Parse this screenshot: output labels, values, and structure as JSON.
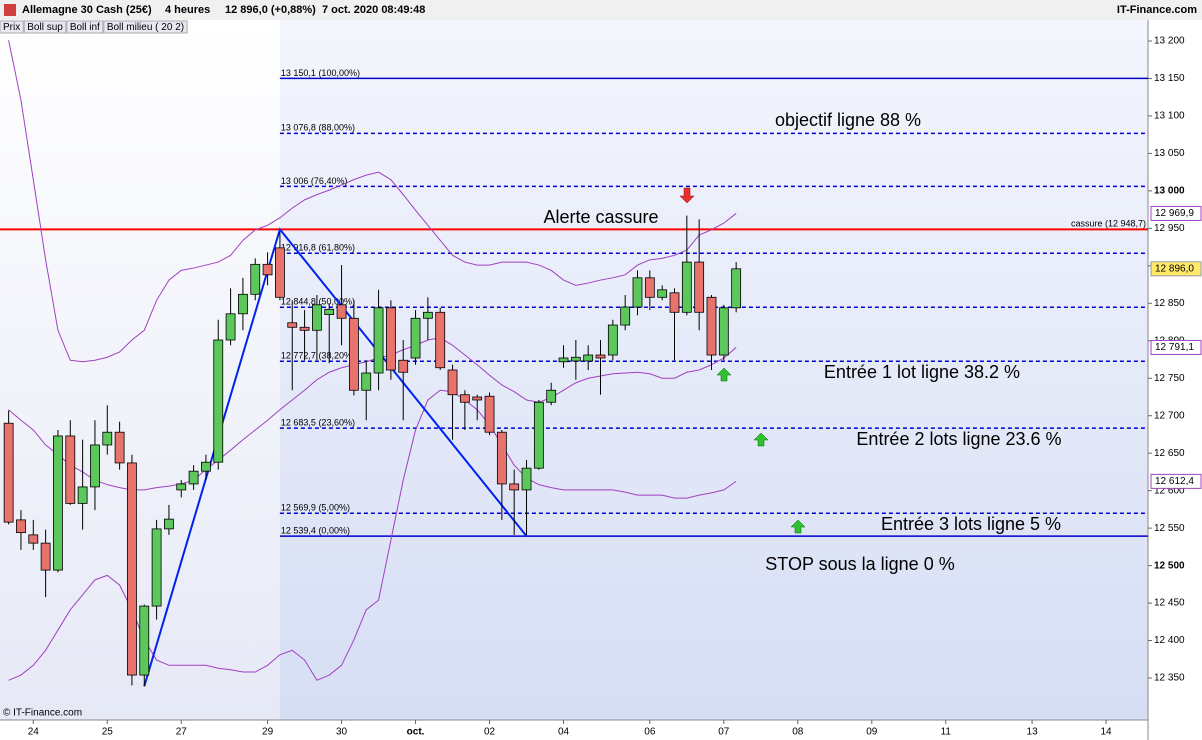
{
  "header": {
    "instrument": "Allemagne 30 Cash (25€)",
    "period": "4 heures",
    "quote": "12 896,0 (+0,88%)",
    "datetime": "7 oct. 2020 08:49:48",
    "source": "IT-Finance.com"
  },
  "footer": "© IT-Finance.com",
  "chart_data": {
    "type": "candlestick",
    "price_name": "Prix",
    "xlim": [
      -0.7,
      92.4
    ],
    "xticks": [
      {
        "value": 2,
        "label": "24"
      },
      {
        "value": 8,
        "label": "25"
      },
      {
        "value": 14,
        "label": "27"
      },
      {
        "value": 21,
        "label": "29"
      },
      {
        "value": 27,
        "label": "30"
      },
      {
        "value": 33,
        "label": "oct."
      },
      {
        "value": 39,
        "label": "02"
      },
      {
        "value": 45,
        "label": "04"
      },
      {
        "value": 52,
        "label": "06"
      },
      {
        "value": 58,
        "label": "07"
      },
      {
        "value": 64,
        "label": "08"
      },
      {
        "value": 70,
        "label": "09"
      },
      {
        "value": 76,
        "label": "11"
      },
      {
        "value": 83,
        "label": "13"
      },
      {
        "value": 89,
        "label": "14"
      }
    ],
    "ylim": [
      12294,
      13228
    ],
    "yticks": [
      {
        "value": 12350,
        "label": "12 350"
      },
      {
        "value": 12400,
        "label": "12 400"
      },
      {
        "value": 12450,
        "label": "12 450"
      },
      {
        "value": 12500,
        "label": "12 500"
      },
      {
        "value": 12550,
        "label": "12 550"
      },
      {
        "value": 12600,
        "label": "12 600"
      },
      {
        "value": 12650,
        "label": "12 650"
      },
      {
        "value": 12700,
        "label": "12 700"
      },
      {
        "value": 12750,
        "label": "12 750"
      },
      {
        "value": 12800,
        "label": "12 800"
      },
      {
        "value": 12850,
        "label": "12 850"
      },
      {
        "value": 12900,
        "label": "12 900"
      },
      {
        "value": 12950,
        "label": "12 950"
      },
      {
        "value": 13000,
        "label": "13 000"
      },
      {
        "value": 13050,
        "label": "13 050"
      },
      {
        "value": 13100,
        "label": "13 100"
      },
      {
        "value": 13150,
        "label": "13 150"
      },
      {
        "value": 13200,
        "label": "13 200"
      }
    ],
    "up_color": "#5cc85c",
    "down_color": "#e8736c",
    "last_label": "12 896,0",
    "open": [
      12690,
      12561,
      12541,
      12530,
      12494,
      12673,
      12583,
      12605,
      12661,
      12678,
      12637,
      12354,
      12446,
      12549,
      12601,
      12609,
      12626,
      12638,
      12801,
      12836,
      12862,
      12902,
      12924,
      12824,
      12818,
      12814,
      12835,
      12848,
      12830,
      12734,
      12757,
      12844,
      12774,
      12777,
      12830,
      12838,
      12761,
      12728,
      12725,
      12726,
      12678,
      12609,
      12601,
      12630,
      12718,
      12772,
      12773,
      12773,
      12781,
      12781,
      12821,
      12845,
      12884,
      12858,
      12864,
      12838,
      12905,
      12858,
      12781,
      12844
    ],
    "high": [
      12707,
      12574,
      12561,
      12548,
      12681,
      12694,
      12668,
      12694,
      12714,
      12692,
      12648,
      12448,
      12561,
      12581,
      12614,
      12634,
      12648,
      12828,
      12870,
      12884,
      12910,
      12918,
      12945,
      12854,
      12841,
      12861,
      12850,
      12901,
      12854,
      12774,
      12868,
      12854,
      12801,
      12841,
      12858,
      12844,
      12768,
      12734,
      12728,
      12731,
      12681,
      12628,
      12641,
      12721,
      12744,
      12794,
      12801,
      12794,
      12801,
      12828,
      12861,
      12894,
      12894,
      12874,
      12870,
      12967,
      12962,
      12861,
      12848,
      12905
    ],
    "low": [
      12555,
      12521,
      12521,
      12458,
      12491,
      12581,
      12548,
      12574,
      12648,
      12628,
      12340,
      12339,
      12428,
      12541,
      12591,
      12601,
      12614,
      12628,
      12794,
      12814,
      12854,
      12874,
      12854,
      12734,
      12774,
      12774,
      12770,
      12794,
      12727,
      12694,
      12734,
      12748,
      12694,
      12768,
      12801,
      12761,
      12668,
      12681,
      12694,
      12674,
      12561,
      12541,
      12541,
      12628,
      12714,
      12764,
      12748,
      12761,
      12728,
      12774,
      12814,
      12834,
      12841,
      12854,
      12774,
      12834,
      12814,
      12761,
      12774,
      12838
    ],
    "close": [
      12558,
      12544,
      12530,
      12494,
      12673,
      12583,
      12605,
      12661,
      12678,
      12637,
      12354,
      12446,
      12549,
      12562,
      12609,
      12626,
      12638,
      12801,
      12836,
      12862,
      12902,
      12888,
      12858,
      12818,
      12814,
      12848,
      12842,
      12830,
      12734,
      12757,
      12844,
      12761,
      12758,
      12830,
      12838,
      12764,
      12728,
      12718,
      12721,
      12678,
      12609,
      12601,
      12630,
      12718,
      12734,
      12777,
      12778,
      12781,
      12777,
      12821,
      12845,
      12884,
      12858,
      12868,
      12838,
      12905,
      12838,
      12781,
      12844,
      12896
    ],
    "series": [
      {
        "name": "Boll sup",
        "color": "#a040c0",
        "last_label": "12 969,9",
        "values": [
          13201,
          13121,
          13015,
          12908,
          12814,
          12774,
          12772,
          12774,
          12778,
          12785,
          12801,
          12814,
          12854,
          12881,
          12894,
          12897,
          12901,
          12905,
          12914,
          12934,
          12948,
          12954,
          12964,
          12977,
          12988,
          12995,
          13001,
          13008,
          13015,
          13021,
          13025,
          13015,
          12995,
          12974,
          12954,
          12934,
          12914,
          12905,
          12901,
          12901,
          12905,
          12905,
          12905,
          12901,
          12894,
          12881,
          12874,
          12877,
          12881,
          12884,
          12888,
          12901,
          12908,
          12910,
          12914,
          12921,
          12941,
          12948,
          12957,
          12969.9
        ]
      },
      {
        "name": "Boll inf",
        "color": "#a040c0",
        "last_label": "12 612,4",
        "values": [
          12347,
          12354,
          12367,
          12387,
          12414,
          12441,
          12461,
          12481,
          12487,
          12474,
          12441,
          12401,
          12374,
          12367,
          12367,
          12367,
          12367,
          12363,
          12361,
          12358,
          12358,
          12367,
          12381,
          12387,
          12374,
          12347,
          12354,
          12367,
          12401,
          12441,
          12454,
          12534,
          12614,
          12681,
          12721,
          12734,
          12732,
          12721,
          12708,
          12688,
          12661,
          12634,
          12617,
          12608,
          12604,
          12601,
          12601,
          12601,
          12601,
          12601,
          12598,
          12594,
          12594,
          12594,
          12590,
          12590,
          12594,
          12597,
          12601,
          12612.4
        ]
      },
      {
        "name": "Boll milieu ( 20 2)",
        "color": "#a040c0",
        "last_label": "12 791,1",
        "values": [
          12708,
          12694,
          12681,
          12661,
          12648,
          12634,
          12625,
          12614,
          12608,
          12604,
          12601,
          12601,
          12604,
          12606,
          12609,
          12614,
          12628,
          12641,
          12654,
          12668,
          12681,
          12694,
          12708,
          12721,
          12734,
          12748,
          12758,
          12764,
          12768,
          12772,
          12777,
          12781,
          12788,
          12794,
          12801,
          12804,
          12794,
          12781,
          12768,
          12754,
          12741,
          12732,
          12721,
          12718,
          12724,
          12734,
          12744,
          12750,
          12753,
          12756,
          12757,
          12758,
          12756,
          12750,
          12750,
          12758,
          12761,
          12768,
          12777,
          12791.1
        ]
      }
    ],
    "fibonacci": {
      "color": "#0000cc",
      "levels": [
        {
          "value": 13150.1,
          "label": "13 150,1 (100,00%)",
          "style": "solid"
        },
        {
          "value": 13076.8,
          "label": "13 076,8 (88,00%)",
          "style": "dashed"
        },
        {
          "value": 13006,
          "label": "13 006 (76,40%)",
          "style": "dashed"
        },
        {
          "value": 12916.8,
          "label": "12 916,8 (61,80%)",
          "style": "dashed"
        },
        {
          "value": 12844.8,
          "label": "12 844,8 (50,00%)",
          "style": "dashed"
        },
        {
          "value": 12772.7,
          "label": "12 772,7 (38,20%)",
          "style": "dashed"
        },
        {
          "value": 12683.5,
          "label": "12 683,5 (23,60%)",
          "style": "dashed"
        },
        {
          "value": 12569.9,
          "label": "12 569,9 (5,00%)",
          "style": "dashed"
        },
        {
          "value": 12539.4,
          "label": "12 539,4 (0,00%)",
          "style": "solid"
        }
      ]
    },
    "trend_line": {
      "color": "#0022ee",
      "x": [
        11,
        22,
        42
      ],
      "y": [
        12339,
        12948.7,
        12539.4
      ]
    },
    "breakout": {
      "value": 12948.7,
      "label": "cassure (12 948,7)",
      "color": "#ff0000"
    },
    "annotations": [
      {
        "text": "Alerte cassure",
        "color": "#ff0000"
      },
      {
        "text": "objectif ligne 88 %",
        "color": "#0000cc"
      },
      {
        "text": "Entrée 1 lot ligne 38.2 %",
        "color": "#0000cc"
      },
      {
        "text": "Entrée 2 lots ligne 23.6 %",
        "color": "#0000cc"
      },
      {
        "text": "Entrée 3 lots ligne 5 %",
        "color": "#0000cc"
      },
      {
        "text": "STOP sous la ligne 0 %",
        "color": "#ff0000"
      }
    ]
  }
}
